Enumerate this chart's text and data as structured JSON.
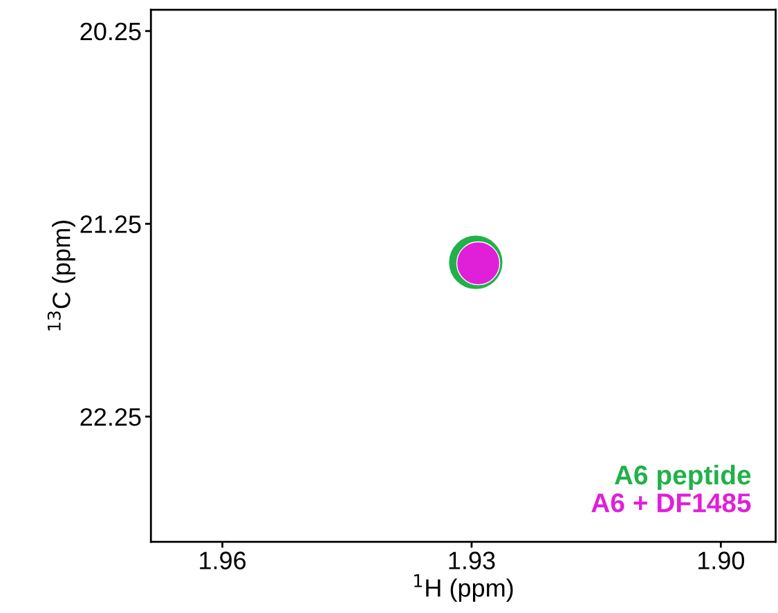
{
  "chart_data": {
    "type": "scatter",
    "xlabel": "$^{1}$H (ppm)",
    "ylabel": "$^{13}$C (ppm)",
    "xlim": [
      1.9686,
      1.8934
    ],
    "xticks": [
      1.96,
      1.93,
      {
        "value": 1.9,
        "label": "1.90"
      }
    ],
    "ylim": [
      22.9,
      20.14
    ],
    "yticks": [
      20.25,
      21.25,
      22.25
    ],
    "series": [
      {
        "name": "A6 peptide",
        "color": "#22b04a",
        "x": [
          1.9295
        ],
        "values": [
          21.45
        ]
      },
      {
        "name": "A6 + DF1485",
        "color": "#e020d8",
        "x": [
          1.9292
        ],
        "values": [
          21.455
        ]
      }
    ],
    "marker": "circle",
    "grid": false,
    "legend": "bottom right"
  }
}
